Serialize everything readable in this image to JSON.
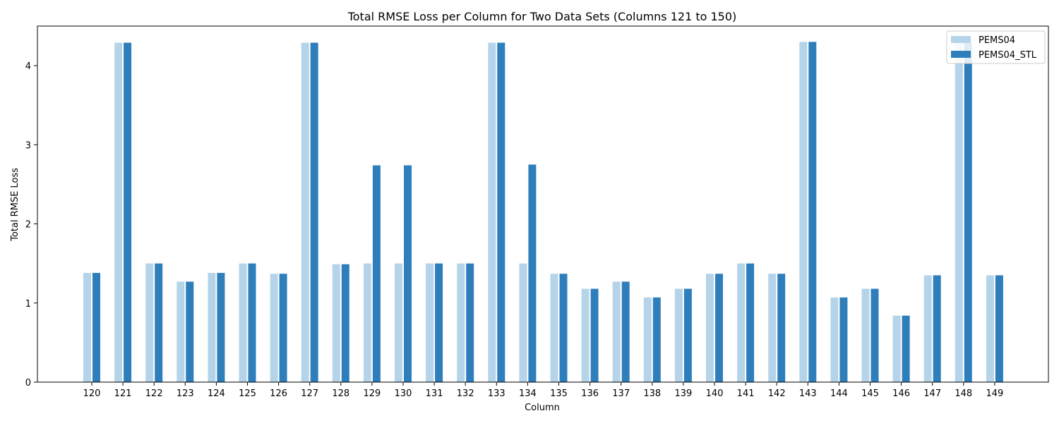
{
  "chart_data": {
    "type": "bar",
    "title": "Total RMSE Loss per Column for Two Data Sets (Columns 121 to 150)",
    "xlabel": "Column",
    "ylabel": "Total RMSE Loss",
    "ylim": [
      0,
      4.5
    ],
    "yticks": [
      "0",
      "1",
      "2",
      "3",
      "4"
    ],
    "legend_position": "top-right",
    "grid": false,
    "categories": [
      "120",
      "121",
      "122",
      "123",
      "124",
      "125",
      "126",
      "127",
      "128",
      "129",
      "130",
      "131",
      "132",
      "133",
      "134",
      "135",
      "136",
      "137",
      "138",
      "139",
      "140",
      "141",
      "142",
      "143",
      "144",
      "145",
      "146",
      "147",
      "148",
      "149"
    ],
    "series": [
      {
        "name": "PEMS04",
        "color": "#b5d4e9",
        "values": [
          1.38,
          4.29,
          1.5,
          1.27,
          1.38,
          1.5,
          1.37,
          4.29,
          1.49,
          1.5,
          1.5,
          1.5,
          1.5,
          4.29,
          1.5,
          1.37,
          1.18,
          1.27,
          1.07,
          1.18,
          1.37,
          1.5,
          1.37,
          4.3,
          1.07,
          1.18,
          0.84,
          1.35,
          4.29,
          1.35
        ]
      },
      {
        "name": "PEMS04_STL",
        "color": "#2f7ebc",
        "values": [
          1.38,
          4.29,
          1.5,
          1.27,
          1.38,
          1.5,
          1.37,
          4.29,
          1.49,
          2.74,
          2.74,
          1.5,
          1.5,
          4.29,
          2.75,
          1.37,
          1.18,
          1.27,
          1.07,
          1.18,
          1.37,
          1.5,
          1.37,
          4.3,
          1.07,
          1.18,
          0.84,
          1.35,
          4.29,
          1.35
        ]
      }
    ]
  }
}
